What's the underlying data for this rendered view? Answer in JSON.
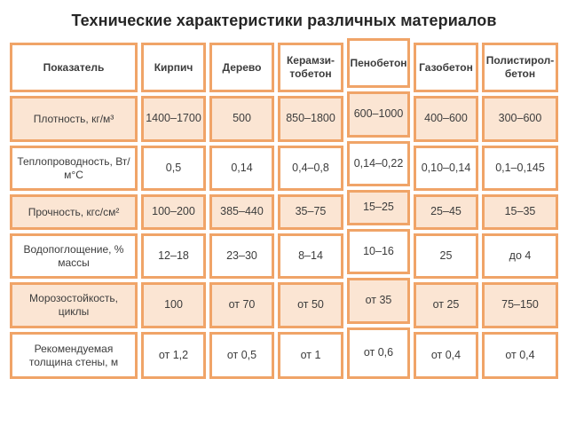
{
  "colors": {
    "table_border": "#F0A468",
    "shaded_cell_background": "#FBE5D3",
    "cell_background": "#FFFFFF",
    "text": "#3C3C3C",
    "title_text": "#262626",
    "page_background": "#FFFFFF"
  },
  "chart_data": {
    "type": "table",
    "title": "Технические характеристики различных материалов",
    "highlight_column": "Пенобетон",
    "highlight_column_index": 4,
    "columns": [
      "Показатель",
      "Кирпич",
      "Дерево",
      "Керамзи-тобетон",
      "Пенобетон",
      "Газобетон",
      "Полистирол-бетон"
    ],
    "rows": [
      {
        "label": "Плотность, кг/м³",
        "shaded": true,
        "values": [
          "1400–1700",
          "500",
          "850–1800",
          "600–1000",
          "400–600",
          "300–600"
        ]
      },
      {
        "label": "Теплопроводность, Вт/м°С",
        "shaded": false,
        "values": [
          "0,5",
          "0,14",
          "0,4–0,8",
          "0,14–0,22",
          "0,10–0,14",
          "0,1–0,145"
        ]
      },
      {
        "label": "Прочность, кгс/см²",
        "shaded": true,
        "values": [
          "100–200",
          "385–440",
          "35–75",
          "15–25",
          "25–45",
          "15–35"
        ]
      },
      {
        "label": "Водопоглощение, % массы",
        "shaded": false,
        "values": [
          "12–18",
          "23–30",
          "8–14",
          "10–16",
          "25",
          "до 4"
        ]
      },
      {
        "label": "Морозостойкость, циклы",
        "shaded": true,
        "values": [
          "100",
          "от 70",
          "от 50",
          "от 35",
          "от 25",
          "75–150"
        ]
      },
      {
        "label": "Рекомендуемая толщина стены, м",
        "shaded": false,
        "values": [
          "от 1,2",
          "от 0,5",
          "от 1",
          "от 0,6",
          "от 0,4",
          "от 0,4"
        ]
      }
    ]
  }
}
